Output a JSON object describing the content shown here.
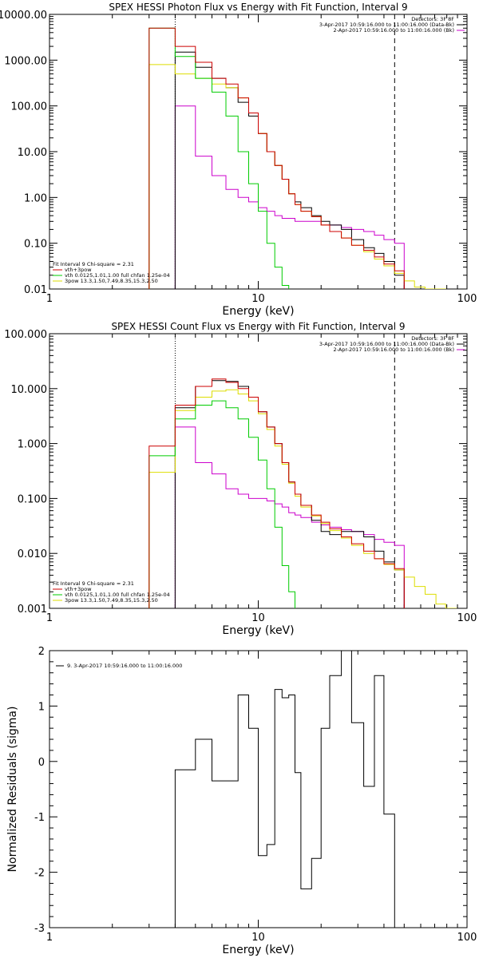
{
  "chart_data": [
    {
      "type": "line",
      "title": "SPEX HESSI Photon Flux vs Energy with Fit Function, Interval 9",
      "xlabel": "Energy (keV)",
      "ylabel": "",
      "xscale": "log",
      "yscale": "log",
      "xlim": [
        1,
        100
      ],
      "ylim": [
        0.01,
        10000
      ],
      "xticks": [
        "1",
        "10",
        "100"
      ],
      "yticks": [
        "0.01",
        "0.10",
        "1.00",
        "10.00",
        "100.00",
        "1000.00",
        "10000.00"
      ],
      "vlines": {
        "dotted": 4,
        "dashed": 45
      },
      "legend_top_right": [
        {
          "text": "Detectors: 3F 8F",
          "color": null
        },
        {
          "text": "3-Apr-2017 10:59:16.000 to 11:00:16.000 (Data-Bk)",
          "color": "#000000"
        },
        {
          "text": "2-Apr-2017 10:59:16.000 to 11:00:16.000 (Bk)",
          "color": "#cc00cc"
        }
      ],
      "legend_bottom_left": [
        {
          "text": "Fit Interval 9   Chi-square = 2.31",
          "color": null
        },
        {
          "text": "vth+3pow",
          "color": "#cc0000"
        },
        {
          "text": "vth 0.0125,1.01,1.00  full chfan 1.25e-04",
          "color": "#00cc00"
        },
        {
          "text": "3pow 13.3,1.50,7.49,8.35,15.3,2.50",
          "color": "#dddd00"
        }
      ],
      "edges": [
        3,
        4,
        5,
        6,
        7,
        8,
        9,
        10,
        11,
        12,
        13,
        14,
        15,
        16,
        18,
        20,
        22,
        25,
        28,
        32,
        36,
        40,
        45,
        50,
        56,
        63,
        71,
        79
      ],
      "series": [
        {
          "name": "Data-Bk",
          "color": "#000000",
          "values": [
            null,
            1500,
            700,
            400,
            250,
            120,
            60,
            25,
            10,
            5,
            2.5,
            1.2,
            0.8,
            0.6,
            0.4,
            0.3,
            0.25,
            0.2,
            0.12,
            0.08,
            0.06,
            0.04,
            0.02,
            null,
            null,
            null,
            null
          ]
        },
        {
          "name": "Bk",
          "color": "#cc00cc",
          "values": [
            null,
            100,
            8,
            3,
            1.5,
            1.0,
            0.8,
            0.6,
            0.5,
            0.4,
            0.35,
            0.35,
            0.3,
            0.3,
            0.3,
            0.25,
            0.25,
            0.22,
            0.2,
            0.18,
            0.15,
            0.12,
            0.1,
            null,
            null,
            null,
            null
          ]
        },
        {
          "name": "vth+3pow",
          "color": "#cc0000",
          "values": [
            5000,
            2000,
            900,
            400,
            300,
            150,
            70,
            25,
            10,
            5,
            2.5,
            1.2,
            0.7,
            0.5,
            0.38,
            0.25,
            0.18,
            0.13,
            0.09,
            0.07,
            0.05,
            0.035,
            0.025,
            null,
            null,
            null,
            null
          ]
        },
        {
          "name": "vth",
          "color": "#00cc00",
          "values": [
            5000,
            1200,
            400,
            200,
            60,
            10,
            2,
            0.5,
            0.1,
            0.03,
            0.012,
            null,
            null,
            null,
            null,
            null,
            null,
            null,
            null,
            null,
            null,
            null,
            null,
            null,
            null,
            null,
            null
          ]
        },
        {
          "name": "3pow",
          "color": "#dddd00",
          "values": [
            800,
            500,
            400,
            300,
            250,
            150,
            70,
            25,
            10,
            5,
            2.5,
            1.2,
            0.7,
            0.5,
            0.38,
            0.25,
            0.18,
            0.13,
            0.09,
            0.065,
            0.045,
            0.032,
            0.022,
            0.015,
            0.011,
            0.01,
            0.01
          ]
        }
      ]
    },
    {
      "type": "line",
      "title": "SPEX HESSI Count Flux vs Energy with Fit Function, Interval 9",
      "xlabel": "Energy (keV)",
      "ylabel": "",
      "xscale": "log",
      "yscale": "log",
      "xlim": [
        1,
        100
      ],
      "ylim": [
        0.001,
        100
      ],
      "xticks": [
        "1",
        "10",
        "100"
      ],
      "yticks": [
        "0.001",
        "0.010",
        "0.100",
        "1.000",
        "10.000",
        "100.000"
      ],
      "vlines": {
        "dotted": 4,
        "dashed": 45
      },
      "legend_top_right": [
        {
          "text": "Detectors: 3F 8F",
          "color": null
        },
        {
          "text": "3-Apr-2017 10:59:16.000 to 11:00:16.000 (Data-Bk)",
          "color": "#000000"
        },
        {
          "text": "2-Apr-2017 10:59:16.000 to 11:00:16.000 (Bk)",
          "color": "#cc00cc"
        }
      ],
      "legend_bottom_left": [
        {
          "text": "Fit Interval 9   Chi-square = 2.31",
          "color": null
        },
        {
          "text": "vth+3pow",
          "color": "#cc0000"
        },
        {
          "text": "vth 0.0125,1.01,1.00  full chfan 1.25e-04",
          "color": "#00cc00"
        },
        {
          "text": "3pow 13.3,1.50,7.49,8.35,15.3,2.50",
          "color": "#dddd00"
        }
      ],
      "edges": [
        3,
        4,
        5,
        6,
        7,
        8,
        9,
        10,
        11,
        12,
        13,
        14,
        15,
        16,
        18,
        20,
        22,
        25,
        28,
        32,
        36,
        40,
        45,
        50,
        56,
        63,
        71,
        79,
        89
      ],
      "series": [
        {
          "name": "Data-Bk",
          "color": "#000000",
          "values": [
            null,
            4.5,
            11,
            14,
            13.5,
            11,
            7,
            3.8,
            2,
            1,
            0.45,
            0.2,
            0.12,
            0.075,
            0.04,
            0.025,
            0.022,
            0.025,
            0.025,
            0.02,
            0.011,
            0.007,
            0.005,
            null,
            null,
            null,
            null,
            null
          ]
        },
        {
          "name": "Bk",
          "color": "#cc00cc",
          "values": [
            null,
            2,
            0.45,
            0.28,
            0.15,
            0.12,
            0.1,
            0.1,
            0.09,
            0.08,
            0.07,
            0.055,
            0.05,
            0.045,
            0.037,
            0.033,
            0.03,
            0.027,
            0.025,
            0.022,
            0.018,
            0.016,
            0.014,
            null,
            null,
            null,
            null,
            null
          ]
        },
        {
          "name": "vth+3pow",
          "color": "#cc0000",
          "values": [
            0.9,
            5,
            11,
            15,
            13,
            10,
            7,
            3.8,
            2,
            1,
            0.45,
            0.2,
            0.12,
            0.075,
            0.05,
            0.037,
            0.028,
            0.02,
            0.015,
            0.011,
            0.008,
            0.0065,
            0.0053,
            null,
            null,
            null,
            null,
            null
          ]
        },
        {
          "name": "vth",
          "color": "#00cc00",
          "values": [
            0.6,
            2.8,
            5,
            6,
            4.5,
            2.8,
            1.3,
            0.5,
            0.15,
            0.03,
            0.006,
            0.002,
            null,
            null,
            null,
            null,
            null,
            null,
            null,
            null,
            null,
            null,
            null,
            null,
            null,
            null,
            null,
            null
          ]
        },
        {
          "name": "3pow",
          "color": "#dddd00",
          "values": [
            0.3,
            4,
            7,
            9,
            9.5,
            8,
            6,
            3.5,
            1.8,
            0.9,
            0.42,
            0.19,
            0.11,
            0.07,
            0.048,
            0.035,
            0.026,
            0.019,
            0.014,
            0.01,
            0.008,
            0.0063,
            0.005,
            0.0037,
            0.0025,
            0.0018,
            0.0012,
            0.001
          ]
        }
      ]
    },
    {
      "type": "line",
      "title": "",
      "xlabel": "Energy (keV)",
      "ylabel": "Normalized Residuals (sigma)",
      "xscale": "log",
      "yscale": "linear",
      "xlim": [
        1,
        100
      ],
      "ylim": [
        -3,
        2
      ],
      "xticks": [
        "1",
        "10",
        "100"
      ],
      "yticks": [
        "-3",
        "-2",
        "-1",
        "0",
        "1",
        "2"
      ],
      "legend_top_left": [
        {
          "text": "9. 3-Apr-2017 10:59:16.000 to 11:00:16.000",
          "color": "#000000"
        }
      ],
      "edges": [
        4,
        5,
        6,
        7,
        8,
        9,
        10,
        11,
        12,
        13,
        14,
        15,
        16,
        18,
        20,
        22,
        25,
        28,
        32,
        36,
        40,
        45
      ],
      "series": [
        {
          "name": "9. 3-Apr-2017 10:59:16.000 to 11:00:16.000",
          "color": "#000000",
          "values": [
            -0.15,
            0.4,
            -0.35,
            -0.35,
            1.2,
            0.6,
            -1.7,
            -1.5,
            1.3,
            1.15,
            1.2,
            -0.2,
            -2.3,
            -1.75,
            0.6,
            1.55,
            2.0,
            0.7,
            -0.45,
            1.55,
            -0.95
          ]
        }
      ]
    }
  ]
}
